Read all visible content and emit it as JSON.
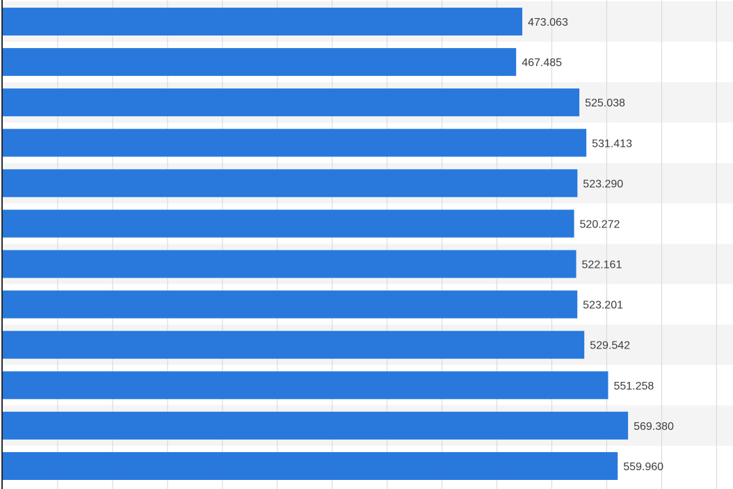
{
  "chart_data": {
    "type": "bar",
    "orientation": "horizontal",
    "values": [
      473.063,
      467.485,
      525.038,
      531.413,
      523.29,
      520.272,
      522.161,
      523.201,
      529.542,
      551.258,
      569.38,
      559.96
    ],
    "value_labels": [
      "473.063",
      "467.485",
      "525.038",
      "531.413",
      "523.290",
      "520.272",
      "522.161",
      "523.201",
      "529.542",
      "551.258",
      "569.380",
      "559.960"
    ],
    "xlim": [
      0,
      650
    ],
    "grid": true,
    "title": "",
    "xlabel": "",
    "ylabel": "",
    "colors": {
      "bar": "#2979dc",
      "band_alt": "#f4f4f5",
      "band": "#ffffff",
      "grid": "#d6d6da",
      "axis": "#2a2a2a",
      "label": "#3c3c3c"
    }
  }
}
